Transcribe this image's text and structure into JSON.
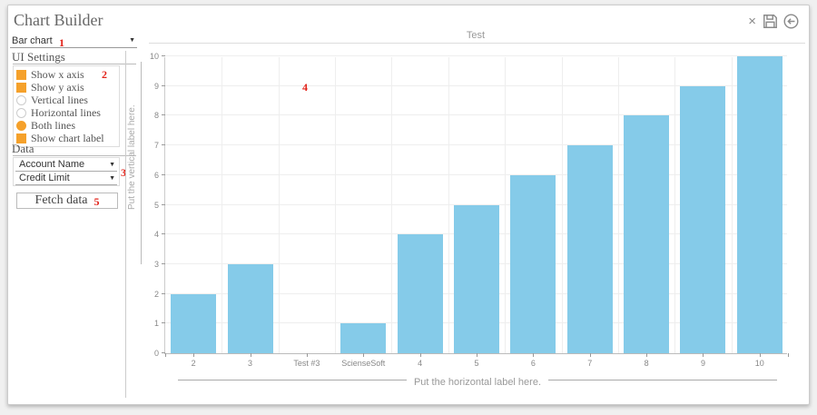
{
  "header": {
    "title": "Chart Builder"
  },
  "window_controls": {
    "close": "×",
    "save_icon": "floppy-disk",
    "back_icon": "circled-left-arrow"
  },
  "chart_type_select": {
    "value": "Bar chart"
  },
  "annotations": {
    "n1": "1",
    "n2": "2",
    "n3": "3",
    "n4": "4",
    "n5": "5"
  },
  "colors": {
    "accent_orange": "#f5a12b",
    "annotation_red": "#e2231a",
    "bar_blue": "#85cbe9"
  },
  "sidebar": {
    "ui_settings": {
      "heading": "UI Settings",
      "options": [
        {
          "label": "Show x axis",
          "control": "checkbox",
          "checked": true
        },
        {
          "label": "Show y axis",
          "control": "checkbox",
          "checked": true
        },
        {
          "label": "Vertical lines",
          "control": "radio",
          "checked": false
        },
        {
          "label": "Horizontal lines",
          "control": "radio",
          "checked": false
        },
        {
          "label": "Both lines",
          "control": "radio",
          "checked": true
        },
        {
          "label": "Show chart label",
          "control": "checkbox",
          "checked": true
        }
      ]
    },
    "data_section": {
      "heading": "Data",
      "selects": [
        {
          "value": "Account Name"
        },
        {
          "value": "Credit Limit"
        }
      ],
      "fetch_button": "Fetch data"
    }
  },
  "chart_data": {
    "type": "bar",
    "title": "Test",
    "categories": [
      "2",
      "3",
      "Test #3",
      "ScienseSoft",
      "4",
      "5",
      "6",
      "7",
      "8",
      "9",
      "10"
    ],
    "values": [
      2,
      3,
      0,
      1,
      4,
      5,
      6,
      7,
      8,
      9,
      10
    ],
    "ylim": [
      0,
      10
    ],
    "y_ticks": [
      0,
      1,
      2,
      3,
      4,
      5,
      6,
      7,
      8,
      9,
      10
    ],
    "xlabel": "Put the horizontal label here.",
    "ylabel": "Put the vertical label here.",
    "grid": "both",
    "legend": "none",
    "bar_color": "#85cbe9"
  }
}
